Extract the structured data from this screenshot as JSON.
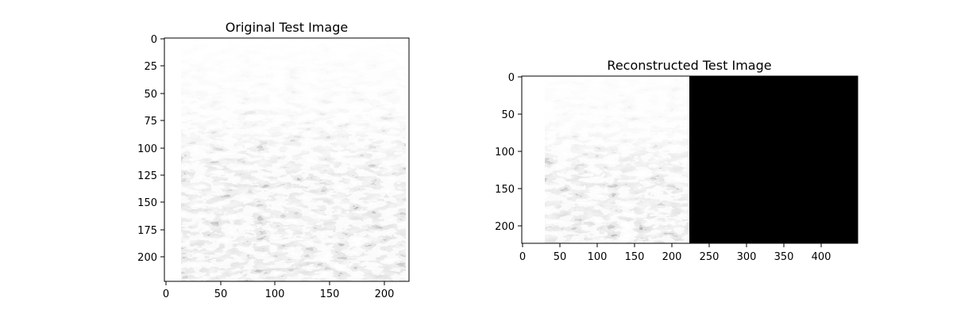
{
  "figure": {
    "panels": [
      {
        "title": "Original Test Image",
        "x_ticks": [
          "0",
          "50",
          "100",
          "150",
          "200"
        ],
        "y_ticks": [
          "0",
          "25",
          "50",
          "75",
          "100",
          "125",
          "150",
          "175",
          "200"
        ]
      },
      {
        "title": "Reconstructed Test Image",
        "x_ticks": [
          "0",
          "50",
          "100",
          "150",
          "200",
          "250",
          "300",
          "350",
          "400"
        ],
        "y_ticks": [
          "0",
          "50",
          "100",
          "150",
          "200"
        ]
      }
    ]
  },
  "colors": {
    "background": "#ffffff",
    "axis": "#000000",
    "image_dark": "#000000",
    "image_light": "#f4f4f4"
  }
}
